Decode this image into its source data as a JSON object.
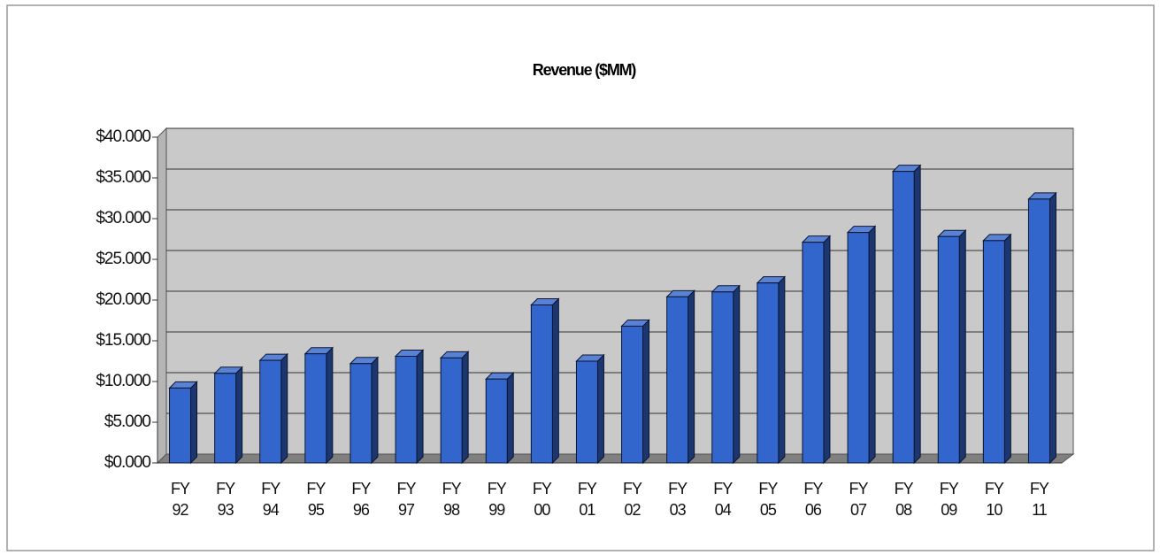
{
  "chart_data": {
    "type": "bar",
    "title": "Revenue ($MM)",
    "categories": [
      "FY 92",
      "FY 93",
      "FY 94",
      "FY 95",
      "FY 96",
      "FY 97",
      "FY 98",
      "FY 99",
      "FY 00",
      "FY 01",
      "FY 02",
      "FY 03",
      "FY 04",
      "FY 05",
      "FY 06",
      "FY 07",
      "FY 08",
      "FY 09",
      "FY 10",
      "FY 11"
    ],
    "values": [
      9.2,
      11.0,
      12.6,
      13.4,
      12.2,
      13.1,
      12.9,
      10.3,
      19.4,
      12.5,
      16.8,
      20.4,
      21.0,
      22.1,
      27.1,
      28.3,
      35.8,
      27.8,
      27.3,
      32.4
    ],
    "color": "#3366cc",
    "ylim": [
      0,
      40
    ],
    "yticks": [
      {
        "value": 0,
        "label": "$0.000"
      },
      {
        "value": 5,
        "label": "$5.000"
      },
      {
        "value": 10,
        "label": "$10.000"
      },
      {
        "value": 15,
        "label": "$15.000"
      },
      {
        "value": 20,
        "label": "$20.000"
      },
      {
        "value": 25,
        "label": "$25.000"
      },
      {
        "value": 30,
        "label": "$30.000"
      },
      {
        "value": 35,
        "label": "$35.000"
      },
      {
        "value": 40,
        "label": "$40.000"
      }
    ],
    "grid": true
  }
}
